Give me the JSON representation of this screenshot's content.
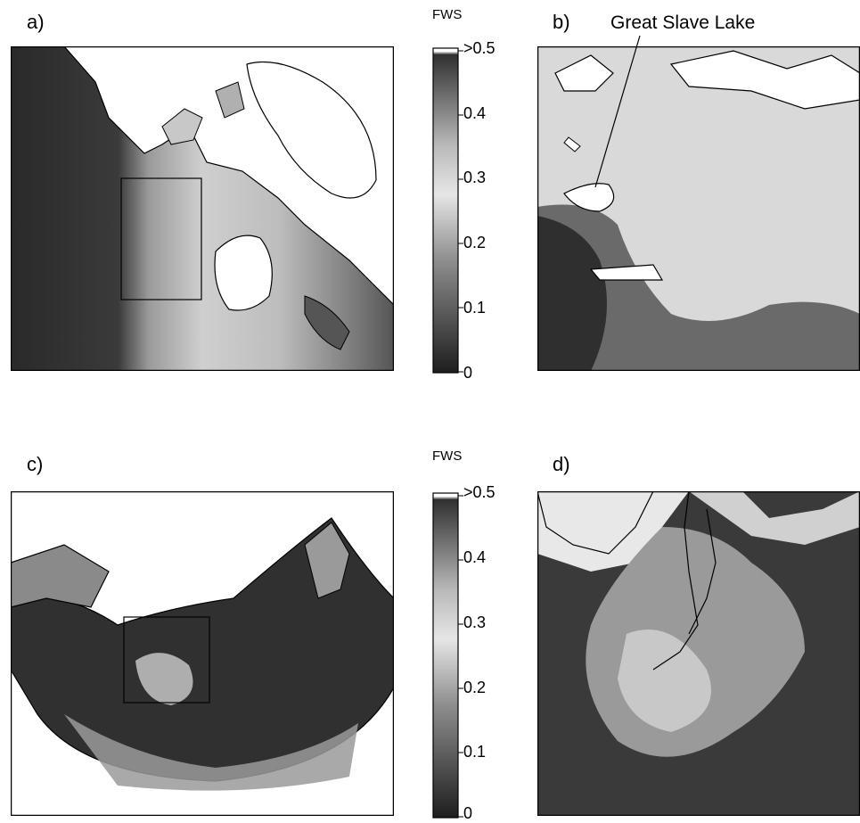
{
  "panels": {
    "a": {
      "label": "a)"
    },
    "b": {
      "label": "b)"
    },
    "c": {
      "label": "c)"
    },
    "d": {
      "label": "d)"
    }
  },
  "annotation": "Great Slave Lake",
  "colorbar_top": {
    "title": "FWS",
    "ticks": [
      "0",
      "0.1",
      "0.2",
      "0.3",
      "0.4",
      ">0.5"
    ]
  },
  "colorbar_bottom": {
    "title": "FWS",
    "ticks": [
      "0",
      "0.1",
      "0.2",
      "0.3",
      "0.4",
      ">0.5"
    ]
  },
  "colors": {
    "land_dark": "#2b2b2b",
    "land_mid": "#8a8a8a",
    "land_light": "#d4d4d4",
    "water": "#ffffff",
    "outline": "#000000"
  }
}
